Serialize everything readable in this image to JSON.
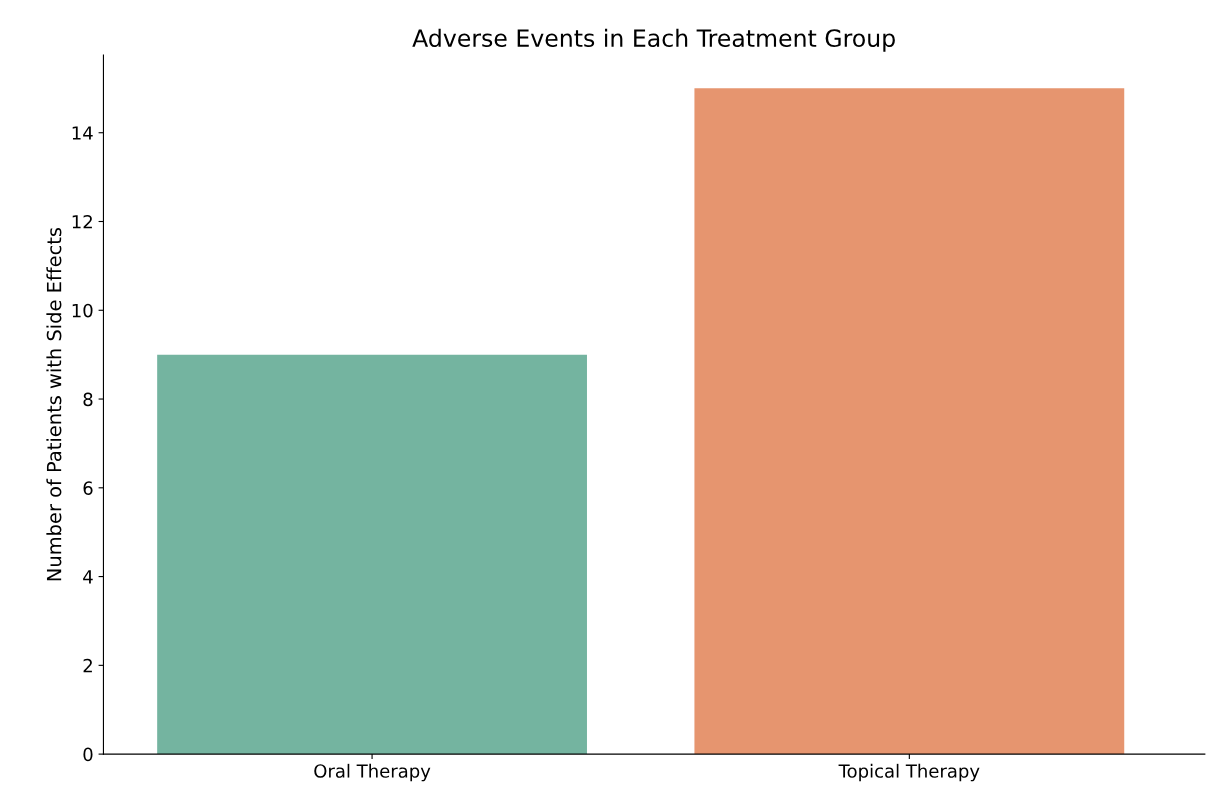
{
  "chart_data": {
    "type": "bar",
    "title": "Adverse Events in Each Treatment Group",
    "ylabel": "Number of Patients with Side Effects",
    "categories": [
      "Oral Therapy",
      "Topical Therapy"
    ],
    "values": [
      9,
      15
    ],
    "colors": [
      "#74b4a0",
      "#e6956f"
    ],
    "ylim": [
      0,
      15.75
    ],
    "yticks": [
      0,
      2,
      4,
      6,
      8,
      10,
      12,
      14
    ],
    "grid": false,
    "legend": false
  }
}
